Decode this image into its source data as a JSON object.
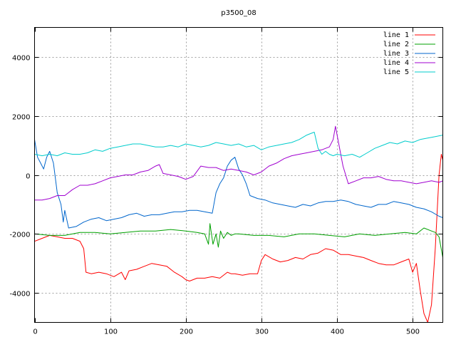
{
  "chart_data": {
    "type": "line",
    "title": "p3500_08",
    "xlabel": "",
    "ylabel": "",
    "xlim": [
      0,
      540
    ],
    "ylim": [
      -5000,
      5000
    ],
    "x_ticks": [
      0,
      100,
      200,
      300,
      400,
      500
    ],
    "y_ticks": [
      -4000,
      -2000,
      0,
      2000,
      4000
    ],
    "grid": true,
    "legend_position": "top-right",
    "series": [
      {
        "name": "line 1",
        "color": "#ff0000",
        "x": [
          0,
          10,
          20,
          30,
          40,
          50,
          60,
          65,
          68,
          75,
          85,
          95,
          105,
          115,
          120,
          125,
          135,
          145,
          155,
          165,
          175,
          185,
          195,
          200,
          205,
          215,
          225,
          235,
          245,
          255,
          260,
          265,
          275,
          285,
          295,
          300,
          305,
          315,
          325,
          335,
          345,
          355,
          365,
          375,
          385,
          395,
          405,
          415,
          425,
          435,
          445,
          455,
          465,
          475,
          485,
          495,
          500,
          505,
          510,
          515,
          520,
          525,
          530,
          535,
          538,
          540
        ],
        "values": [
          -2250,
          -2150,
          -2050,
          -2100,
          -2150,
          -2150,
          -2250,
          -2500,
          -3300,
          -3350,
          -3300,
          -3350,
          -3450,
          -3300,
          -3550,
          -3250,
          -3200,
          -3100,
          -3000,
          -3050,
          -3100,
          -3300,
          -3450,
          -3550,
          -3600,
          -3500,
          -3500,
          -3450,
          -3500,
          -3300,
          -3350,
          -3350,
          -3400,
          -3350,
          -3350,
          -2900,
          -2700,
          -2850,
          -2950,
          -2900,
          -2800,
          -2850,
          -2700,
          -2650,
          -2500,
          -2550,
          -2700,
          -2700,
          -2750,
          -2800,
          -2900,
          -3000,
          -3050,
          -3050,
          -2950,
          -2850,
          -3300,
          -3000,
          -3900,
          -4700,
          -5000,
          -4400,
          -2500,
          0,
          700,
          500
        ]
      },
      {
        "name": "line 2",
        "color": "#00a000",
        "x": [
          0,
          20,
          40,
          60,
          80,
          100,
          120,
          140,
          160,
          180,
          200,
          215,
          225,
          230,
          232,
          236,
          240,
          243,
          246,
          250,
          255,
          260,
          265,
          270,
          290,
          310,
          330,
          350,
          370,
          390,
          410,
          430,
          450,
          470,
          490,
          505,
          515,
          525,
          530,
          535,
          540
        ],
        "values": [
          -2000,
          -2050,
          -2050,
          -1950,
          -1950,
          -2000,
          -1950,
          -1900,
          -1900,
          -1850,
          -1900,
          -1950,
          -2000,
          -2350,
          -1650,
          -2350,
          -2000,
          -2450,
          -1900,
          -2150,
          -1950,
          -2050,
          -2000,
          -2000,
          -2050,
          -2050,
          -2100,
          -2000,
          -2000,
          -2050,
          -2100,
          -2000,
          -2050,
          -2000,
          -1950,
          -2000,
          -1800,
          -1900,
          -1950,
          -2100,
          -2800
        ]
      },
      {
        "name": "line 3",
        "color": "#0066cc",
        "x": [
          0,
          4,
          8,
          12,
          16,
          20,
          25,
          30,
          35,
          38,
          40,
          45,
          55,
          65,
          75,
          85,
          95,
          105,
          115,
          125,
          135,
          145,
          155,
          165,
          175,
          185,
          195,
          205,
          215,
          225,
          235,
          240,
          245,
          250,
          255,
          260,
          265,
          270,
          275,
          280,
          285,
          295,
          305,
          315,
          325,
          335,
          345,
          355,
          365,
          375,
          385,
          395,
          405,
          415,
          425,
          435,
          445,
          455,
          465,
          475,
          485,
          495,
          505,
          515,
          525,
          535,
          540
        ],
        "values": [
          1200,
          600,
          400,
          200,
          600,
          800,
          400,
          -600,
          -1000,
          -1600,
          -1200,
          -1800,
          -1750,
          -1600,
          -1500,
          -1450,
          -1550,
          -1500,
          -1450,
          -1350,
          -1300,
          -1400,
          -1350,
          -1350,
          -1300,
          -1250,
          -1250,
          -1200,
          -1200,
          -1250,
          -1300,
          -600,
          -300,
          -100,
          300,
          500,
          600,
          200,
          0,
          -300,
          -700,
          -800,
          -850,
          -950,
          -1000,
          -1050,
          -1100,
          -1000,
          -1050,
          -950,
          -900,
          -900,
          -850,
          -900,
          -1000,
          -1050,
          -1100,
          -1000,
          -1000,
          -900,
          -950,
          -1000,
          -1100,
          -1150,
          -1250,
          -1400,
          -1450
        ]
      },
      {
        "name": "line 4",
        "color": "#a000d0",
        "x": [
          0,
          10,
          20,
          30,
          40,
          50,
          60,
          70,
          80,
          90,
          100,
          110,
          120,
          130,
          140,
          150,
          160,
          165,
          170,
          180,
          190,
          195,
          200,
          210,
          220,
          230,
          240,
          250,
          260,
          270,
          280,
          290,
          300,
          310,
          320,
          330,
          340,
          350,
          360,
          370,
          380,
          385,
          390,
          395,
          398,
          402,
          408,
          415,
          425,
          435,
          445,
          455,
          465,
          475,
          485,
          495,
          505,
          515,
          525,
          535,
          540
        ],
        "values": [
          -850,
          -850,
          -800,
          -700,
          -700,
          -500,
          -350,
          -350,
          -300,
          -200,
          -100,
          -50,
          0,
          0,
          100,
          150,
          300,
          350,
          50,
          0,
          -50,
          -100,
          -150,
          -50,
          300,
          250,
          250,
          150,
          200,
          150,
          100,
          0,
          100,
          300,
          400,
          550,
          650,
          700,
          750,
          800,
          850,
          900,
          950,
          1200,
          1650,
          1100,
          300,
          -300,
          -200,
          -100,
          -100,
          -50,
          -150,
          -200,
          -200,
          -250,
          -300,
          -250,
          -200,
          -250,
          -200
        ]
      },
      {
        "name": "line 5",
        "color": "#00cccc",
        "x": [
          0,
          10,
          20,
          30,
          40,
          50,
          60,
          70,
          80,
          90,
          100,
          110,
          120,
          130,
          140,
          150,
          160,
          170,
          180,
          190,
          200,
          210,
          220,
          230,
          240,
          250,
          260,
          270,
          280,
          290,
          300,
          310,
          320,
          330,
          340,
          350,
          360,
          365,
          370,
          375,
          380,
          385,
          390,
          395,
          400,
          410,
          420,
          430,
          440,
          450,
          460,
          470,
          480,
          490,
          500,
          510,
          520,
          530,
          540
        ],
        "values": [
          700,
          650,
          700,
          650,
          750,
          700,
          700,
          750,
          850,
          800,
          900,
          950,
          1000,
          1050,
          1050,
          1000,
          950,
          950,
          1000,
          950,
          1050,
          1000,
          950,
          1000,
          1100,
          1050,
          1000,
          1050,
          950,
          1000,
          850,
          950,
          1000,
          1050,
          1100,
          1200,
          1350,
          1400,
          1450,
          900,
          700,
          800,
          700,
          650,
          700,
          650,
          700,
          600,
          750,
          900,
          1000,
          1100,
          1050,
          1150,
          1100,
          1200,
          1250,
          1300,
          1350
        ]
      }
    ]
  }
}
